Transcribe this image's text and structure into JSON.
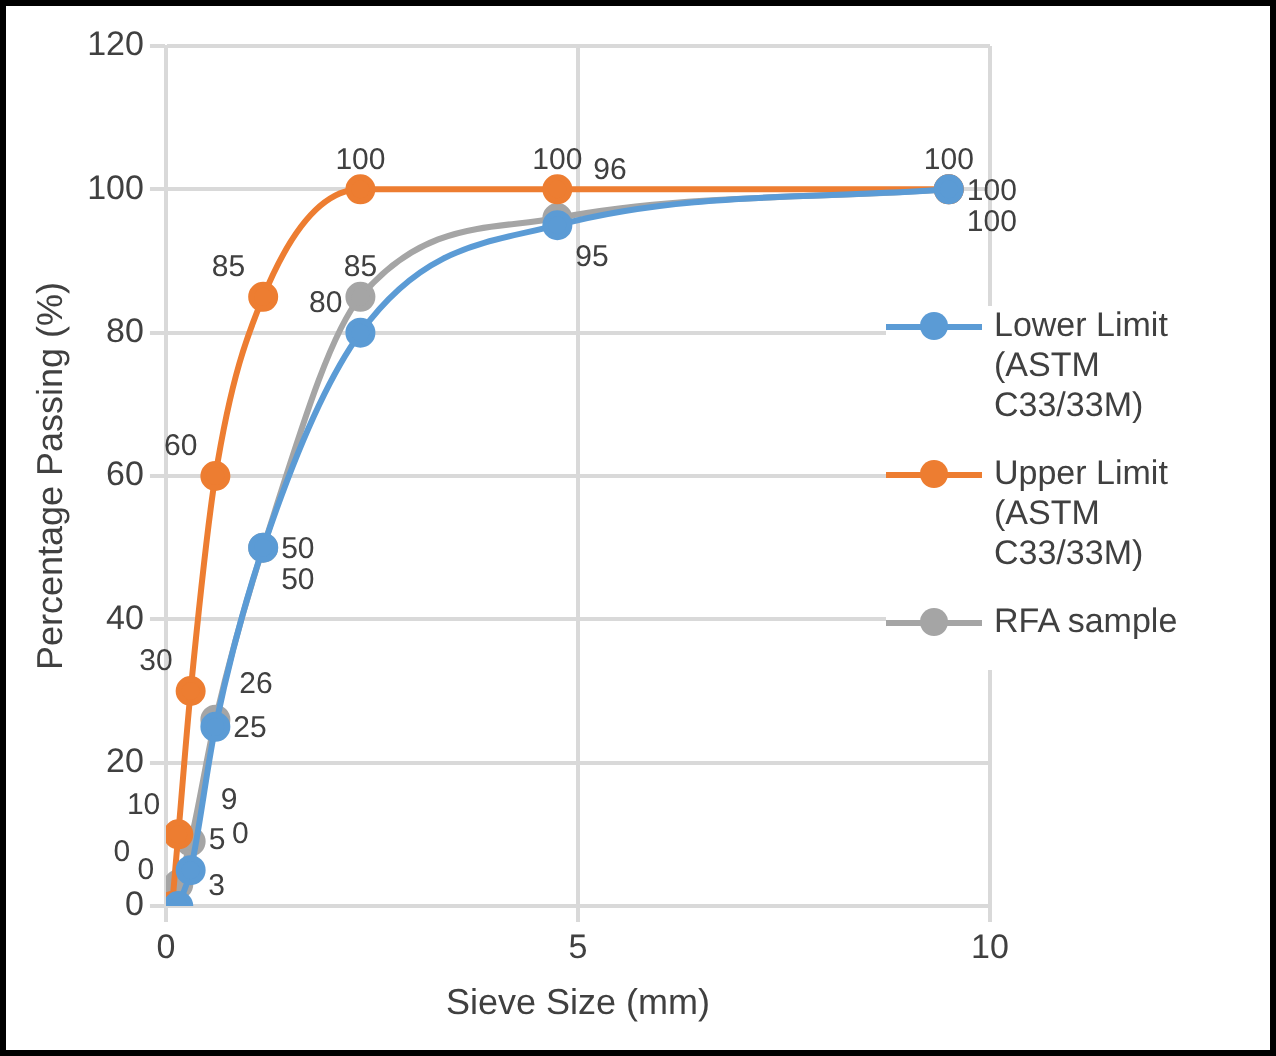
{
  "chart_data": {
    "type": "line",
    "xlabel": "Sieve Size (mm)",
    "ylabel": "Percentage Passing (%)",
    "xlim": [
      0,
      10
    ],
    "xticks": [
      0,
      5,
      10
    ],
    "ylim": [
      0,
      120
    ],
    "yticks": [
      0,
      20,
      40,
      60,
      80,
      100,
      120
    ],
    "grid": true,
    "legend": "right",
    "marker": "circle",
    "data_labels": true,
    "series": [
      {
        "name": "Lower Limit (ASTM C33/33M)",
        "color": "#5b9bd5",
        "x": [
          0.15,
          0.3,
          0.6,
          1.18,
          2.36,
          4.75,
          9.5
        ],
        "values": [
          0,
          5,
          25,
          50,
          80,
          95,
          100
        ]
      },
      {
        "name": "Upper Limit (ASTM C33/33M)",
        "color": "#ed7d31",
        "x": [
          0.075,
          0.15,
          0.3,
          0.6,
          1.18,
          2.36,
          4.75,
          9.5
        ],
        "values": [
          0,
          10,
          30,
          60,
          85,
          100,
          100,
          100
        ]
      },
      {
        "name": "RFA sample",
        "color": "#a5a5a5",
        "x": [
          0.075,
          0.15,
          0.3,
          0.6,
          1.18,
          2.36,
          4.75,
          9.5
        ],
        "values": [
          0,
          3,
          9,
          26,
          50,
          85,
          96,
          100
        ]
      }
    ]
  }
}
